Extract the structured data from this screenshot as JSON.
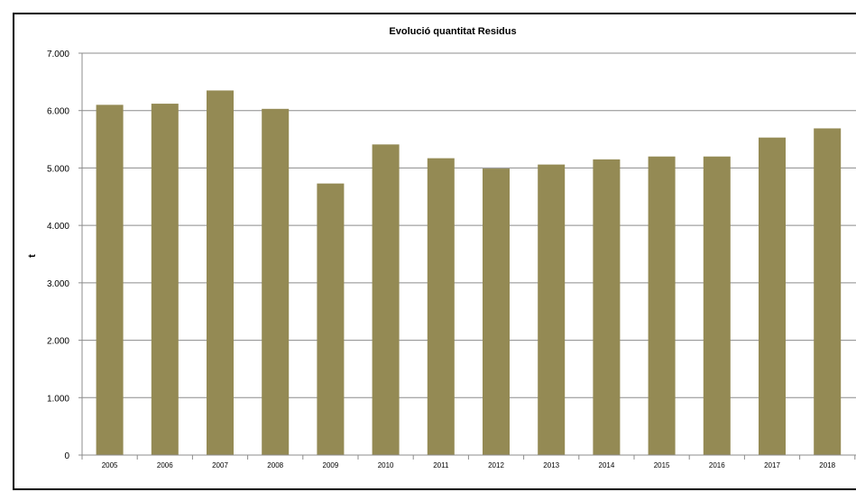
{
  "chart_data": {
    "type": "bar",
    "title": "Evolució quantitat Residus",
    "xlabel": "",
    "ylabel": "t",
    "ylim": [
      0,
      7000
    ],
    "yticks": [
      "0",
      "1.000",
      "2.000",
      "3.000",
      "4.000",
      "5.000",
      "6.000",
      "7.000"
    ],
    "ytick_values": [
      0,
      1000,
      2000,
      3000,
      4000,
      5000,
      6000,
      7000
    ],
    "grid": true,
    "legend": "none",
    "categories": [
      "2005",
      "2006",
      "2007",
      "2008",
      "2009",
      "2010",
      "2011",
      "2012",
      "2013",
      "2014",
      "2015",
      "2016",
      "2017",
      "2018"
    ],
    "series": [
      {
        "values": [
          6100,
          6120,
          6350,
          6030,
          4730,
          5410,
          5170,
          4990,
          5060,
          5150,
          5200,
          5200,
          5530,
          5690
        ],
        "color": "#948A54"
      }
    ],
    "colors": {
      "bar": "#948A54",
      "grid": "#8C8C8C",
      "axis": "#8C8C8C",
      "frame": "#000000"
    }
  }
}
